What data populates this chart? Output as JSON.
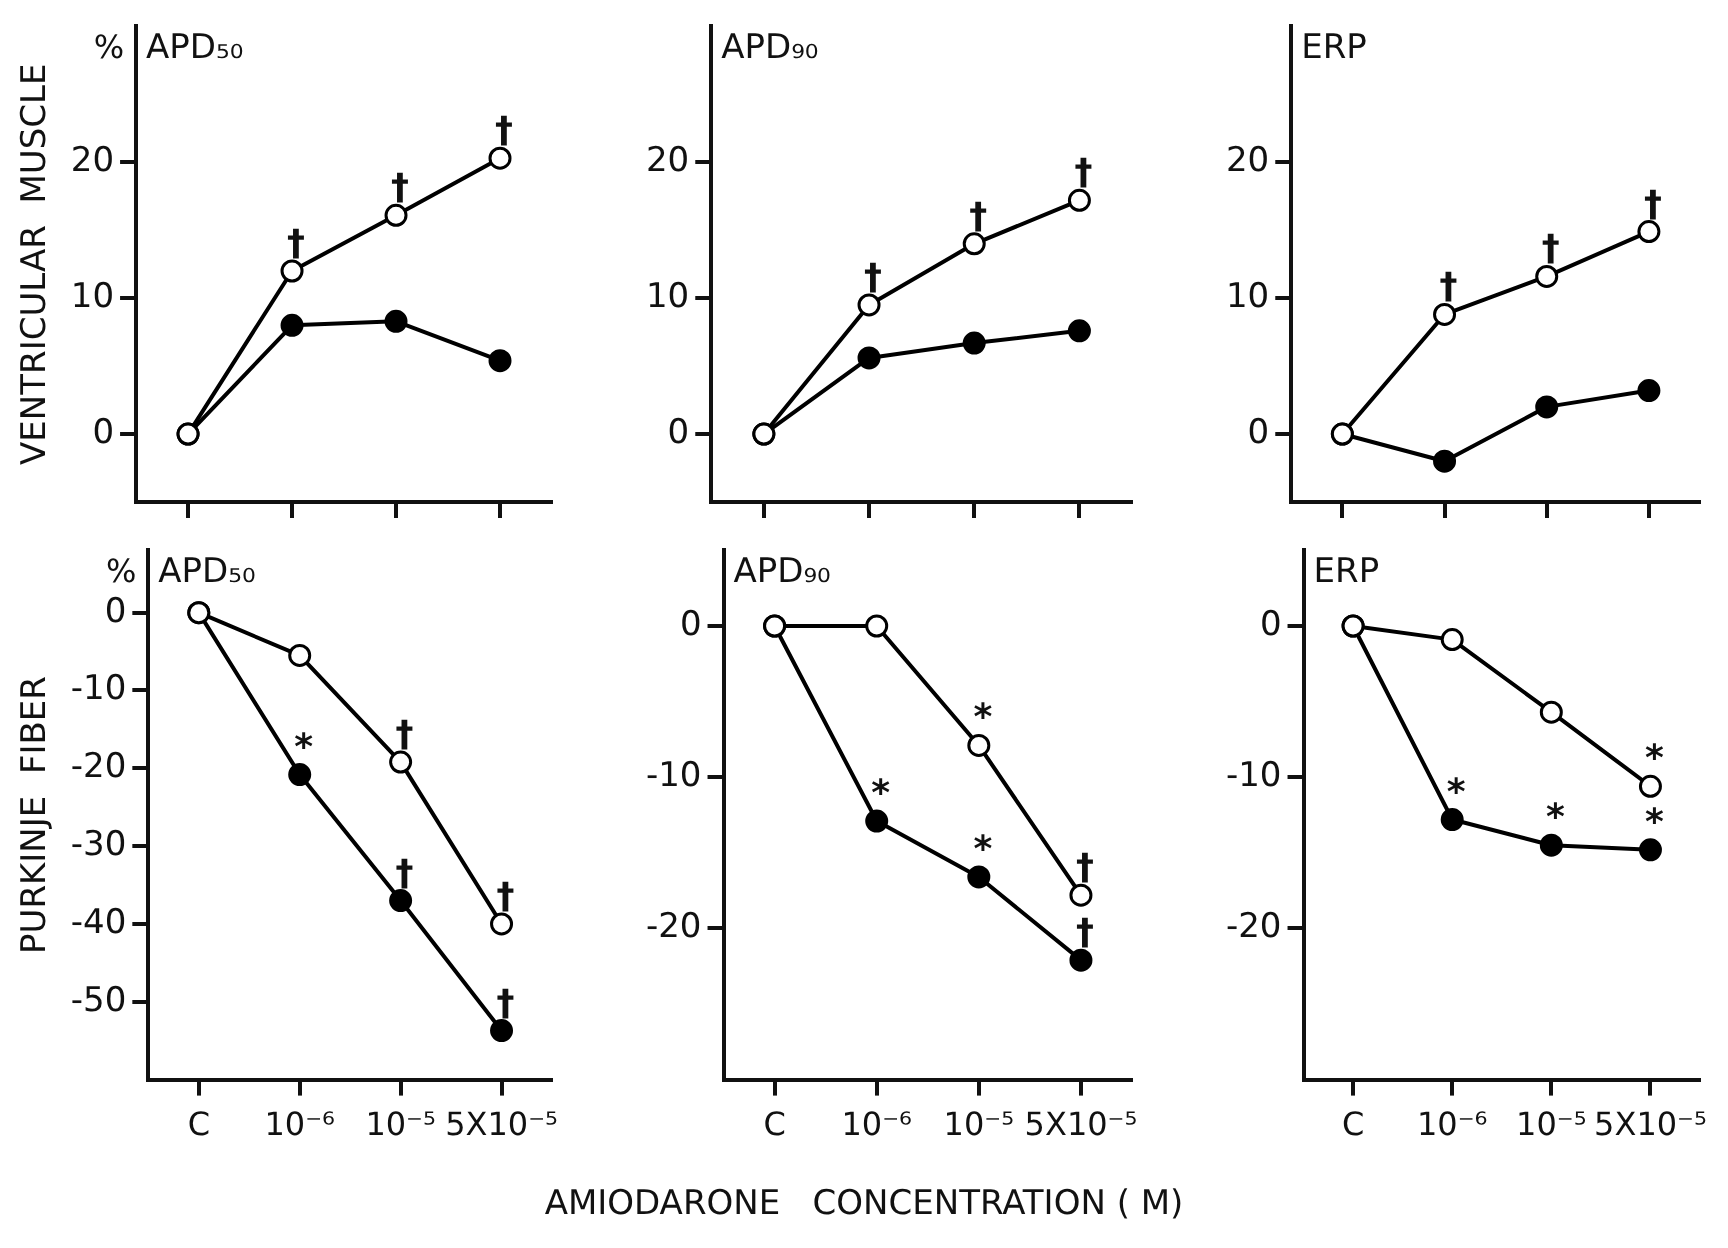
{
  "chart_data": [
    {
      "type": "line",
      "title": "APD₅₀",
      "ylabel": "VENTRICULAR  MUSCLE",
      "annotations": [
        "%",
        {
          "text": "†",
          "x": "10⁻⁶",
          "y": 12.0
        },
        {
          "text": "†",
          "x": "10⁻⁵",
          "y": 16.1
        },
        {
          "text": "†",
          "x": "5X10⁻⁵",
          "y": 20.3
        }
      ],
      "categories": [
        "C",
        "10⁻⁶",
        "10⁻⁵",
        "5X10⁻⁵"
      ],
      "series": [
        {
          "color": "#000000",
          "values": [
            0,
            12.0,
            16.1,
            20.3
          ]
        },
        {
          "color": "#000000",
          "values": [
            0,
            8.0,
            8.3,
            5.4
          ]
        }
      ],
      "ylim": [
        -5,
        30
      ],
      "yticks": [
        0,
        10,
        20
      ],
      "tick_labels": "y",
      "marker": "circle",
      "legend": false
    },
    {
      "type": "line",
      "title": "APD₉₀",
      "annotations": [
        {
          "text": "†",
          "x": "10⁻⁶",
          "y": 9.5
        },
        {
          "text": "†",
          "x": "10⁻⁵",
          "y": 14.0
        },
        {
          "text": "†",
          "x": "5X10⁻⁵",
          "y": 17.2
        }
      ],
      "categories": [
        "C",
        "10⁻⁶",
        "10⁻⁵",
        "5X10⁻⁵"
      ],
      "series": [
        {
          "color": "#000000",
          "values": [
            0,
            9.5,
            14.0,
            17.2
          ]
        },
        {
          "color": "#000000",
          "values": [
            0,
            5.6,
            6.7,
            7.6
          ]
        }
      ],
      "ylim": [
        -5,
        30
      ],
      "yticks": [
        0,
        10,
        20
      ],
      "tick_labels": "y",
      "marker": "circle",
      "legend": false
    },
    {
      "type": "line",
      "title": "ERP",
      "annotations": [
        {
          "text": "†",
          "x": "10⁻⁶",
          "y": 8.8
        },
        {
          "text": "†",
          "x": "10⁻⁵",
          "y": 11.6
        },
        {
          "text": "†",
          "x": "5X10⁻⁵",
          "y": 14.9
        }
      ],
      "categories": [
        "C",
        "10⁻⁶",
        "10⁻⁵",
        "5X10⁻⁵"
      ],
      "series": [
        {
          "color": "#000000",
          "values": [
            0,
            8.8,
            11.6,
            14.9
          ]
        },
        {
          "color": "#000000",
          "values": [
            0,
            -2.0,
            2.0,
            3.2
          ]
        }
      ],
      "ylim": [
        -5,
        30
      ],
      "yticks": [
        0,
        10,
        20
      ],
      "tick_labels": "y",
      "marker": "circle",
      "legend": false
    },
    {
      "type": "line",
      "title": "APD₅₀",
      "ylabel": "PURKINJE  FIBER",
      "annotations": [
        "%",
        {
          "text": "*",
          "x": "10⁻⁶",
          "y": -20.8
        },
        {
          "text": "†",
          "x": "10⁻⁵",
          "y": -19.2
        },
        {
          "text": "†",
          "x": "10⁻⁵",
          "y": -37
        },
        {
          "text": "†",
          "x": "5X10⁻⁵",
          "y": -40
        },
        {
          "text": "†",
          "x": "5X10⁻⁵",
          "y": -53.7
        }
      ],
      "categories": [
        "C",
        "10⁻⁶",
        "10⁻⁵",
        "5X10⁻⁵"
      ],
      "series": [
        {
          "color": "#000000",
          "values": [
            0,
            -5.5,
            -19.2,
            -40
          ]
        },
        {
          "color": "#000000",
          "values": [
            0,
            -20.8,
            -37,
            -53.7
          ]
        }
      ],
      "ylim": [
        -60,
        8
      ],
      "yticks": [
        0,
        -10,
        -20,
        -30,
        -40,
        -50
      ],
      "marker": "circle",
      "legend": false
    },
    {
      "type": "line",
      "title": "APD₉₀",
      "xlabel": "AMIODARONE   CONCENTRATION ( M)",
      "annotations": [
        {
          "text": "*",
          "x": "10⁻⁵",
          "y": -7.9
        },
        {
          "text": "*",
          "x": "10⁻⁶",
          "y": -12.9
        },
        {
          "text": "*",
          "x": "10⁻⁵",
          "y": -16.6
        },
        {
          "text": "†",
          "x": "5X10⁻⁵",
          "y": -17.8
        },
        {
          "text": "†",
          "x": "5X10⁻⁵",
          "y": -22.1
        }
      ],
      "categories": [
        "C",
        "10⁻⁶",
        "10⁻⁵",
        "5X10⁻⁵"
      ],
      "series": [
        {
          "color": "#000000",
          "values": [
            0,
            0,
            -7.9,
            -17.8
          ]
        },
        {
          "color": "#000000",
          "values": [
            0,
            -12.9,
            -16.6,
            -22.1
          ]
        }
      ],
      "ylim": [
        -30,
        5
      ],
      "yticks": [
        0,
        -10,
        -20
      ],
      "marker": "circle",
      "legend": false
    },
    {
      "type": "line",
      "title": "ERP",
      "annotations": [
        {
          "text": "*",
          "x": "10⁻⁶",
          "y": -12.8
        },
        {
          "text": "*",
          "x": "10⁻⁵",
          "y": -14.5
        },
        {
          "text": "*",
          "x": "5X10⁻⁵",
          "y": -10.6
        },
        {
          "text": "*",
          "x": "5X10⁻⁵",
          "y": -14.8
        }
      ],
      "categories": [
        "C",
        "10⁻⁶",
        "10⁻⁵",
        "5X10⁻⁵"
      ],
      "series": [
        {
          "color": "#000000",
          "values": [
            0,
            -0.9,
            -5.7,
            -10.6
          ]
        },
        {
          "color": "#000000",
          "values": [
            0,
            -12.8,
            -14.5,
            -14.8
          ]
        }
      ],
      "ylim": [
        -30,
        5
      ],
      "yticks": [
        0,
        -10,
        -20
      ],
      "marker": "circle",
      "legend": false
    }
  ]
}
